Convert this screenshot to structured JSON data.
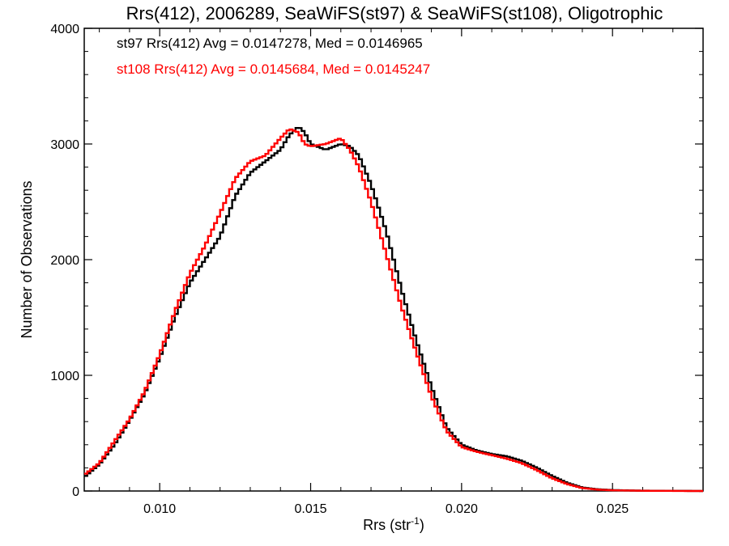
{
  "chart_data": {
    "type": "line",
    "title": "Rrs(412), 2006289, SeaWiFS(st97) & SeaWiFS(st108), Oligotrophic",
    "xlabel": "Rrs (str",
    "xlabel_sup": "-1",
    "xlabel_close": ")",
    "ylabel": "Number of Observations",
    "xlim": [
      0.0075,
      0.028
    ],
    "ylim": [
      0,
      4000
    ],
    "xticks": [
      0.01,
      0.015,
      0.02,
      0.025
    ],
    "xtick_labels": [
      "0.010",
      "0.015",
      "0.020",
      "0.025"
    ],
    "yticks": [
      0,
      1000,
      2000,
      3000,
      4000
    ],
    "ytick_labels": [
      "0",
      "1000",
      "2000",
      "3000",
      "4000"
    ],
    "grid": false,
    "legend_position": "top-left",
    "series": [
      {
        "label": "st97 Rrs(412) Avg = 0.0147278, Med = 0.0146965",
        "color": "#000000",
        "x": [
          0.0075,
          0.008,
          0.0085,
          0.009,
          0.0095,
          0.01,
          0.0105,
          0.011,
          0.0115,
          0.012,
          0.0125,
          0.013,
          0.0135,
          0.014,
          0.0143,
          0.0146,
          0.0148,
          0.015,
          0.0155,
          0.016,
          0.0163,
          0.0166,
          0.017,
          0.0175,
          0.018,
          0.0185,
          0.019,
          0.0195,
          0.02,
          0.0205,
          0.021,
          0.0215,
          0.022,
          0.0225,
          0.023,
          0.0235,
          0.024,
          0.0245,
          0.025,
          0.0255,
          0.026,
          0.0265,
          0.027,
          0.0275,
          0.028
        ],
        "y": [
          120,
          230,
          400,
          610,
          840,
          1150,
          1500,
          1800,
          2000,
          2200,
          2550,
          2750,
          2850,
          2950,
          3080,
          3150,
          3100,
          3000,
          2950,
          3000,
          2980,
          2900,
          2650,
          2250,
          1750,
          1300,
          900,
          550,
          400,
          350,
          320,
          300,
          260,
          200,
          130,
          70,
          30,
          15,
          8,
          5,
          3,
          2,
          1,
          1,
          0
        ]
      },
      {
        "label": "st108 Rrs(412) Avg = 0.0145684, Med = 0.0145247",
        "color": "#ff0000",
        "x": [
          0.0075,
          0.008,
          0.0085,
          0.009,
          0.0095,
          0.01,
          0.0105,
          0.011,
          0.0115,
          0.012,
          0.0125,
          0.013,
          0.0135,
          0.014,
          0.0143,
          0.0146,
          0.0148,
          0.015,
          0.0155,
          0.016,
          0.0163,
          0.0166,
          0.017,
          0.0175,
          0.018,
          0.0185,
          0.019,
          0.0195,
          0.02,
          0.0205,
          0.021,
          0.0215,
          0.022,
          0.0225,
          0.023,
          0.0235,
          0.024,
          0.0245,
          0.025,
          0.0255,
          0.026,
          0.0265,
          0.027,
          0.0275,
          0.028
        ],
        "y": [
          140,
          240,
          430,
          620,
          860,
          1180,
          1550,
          1880,
          2120,
          2400,
          2700,
          2850,
          2900,
          3050,
          3130,
          3100,
          3000,
          2980,
          3000,
          3050,
          2950,
          2800,
          2500,
          2050,
          1600,
          1200,
          820,
          520,
          380,
          340,
          310,
          280,
          240,
          180,
          110,
          60,
          25,
          12,
          6,
          4,
          2,
          1,
          1,
          0,
          0
        ]
      }
    ]
  }
}
